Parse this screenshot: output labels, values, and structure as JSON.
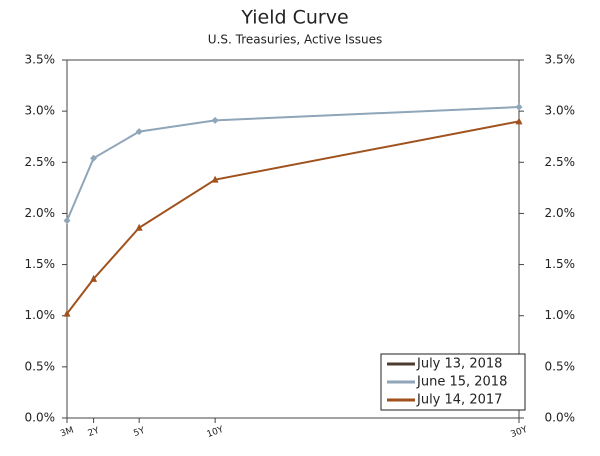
{
  "chart_data": {
    "type": "line",
    "title": "Yield Curve",
    "subtitle": "U.S. Treasuries, Active Issues",
    "x": [
      0.25,
      2,
      5,
      10,
      30
    ],
    "xlim": [
      0.25,
      30
    ],
    "xticks": [
      {
        "value": 0.25,
        "label": "3M"
      },
      {
        "value": 2,
        "label": "2Y"
      },
      {
        "value": 5,
        "label": "5Y"
      },
      {
        "value": 10,
        "label": "10Y"
      },
      {
        "value": 30,
        "label": "30Y"
      }
    ],
    "ylim": [
      0,
      3.5
    ],
    "yticks": [
      {
        "value": 0,
        "label": "0.0%"
      },
      {
        "value": 0.5,
        "label": "0.5%"
      },
      {
        "value": 1,
        "label": "1.0%"
      },
      {
        "value": 1.5,
        "label": "1.5%"
      },
      {
        "value": 2,
        "label": "2.0%"
      },
      {
        "value": 2.5,
        "label": "2.5%"
      },
      {
        "value": 3,
        "label": "3.0%"
      },
      {
        "value": 3.5,
        "label": "3.5%"
      }
    ],
    "y2lim": [
      0,
      3.5
    ],
    "y2ticks": [
      {
        "value": 0,
        "label": "0.0%"
      },
      {
        "value": 0.5,
        "label": "0.5%"
      },
      {
        "value": 1,
        "label": "1.0%"
      },
      {
        "value": 1.5,
        "label": "1.5%"
      },
      {
        "value": 2,
        "label": "2.0%"
      },
      {
        "value": 2.5,
        "label": "2.5%"
      },
      {
        "value": 3,
        "label": "3.0%"
      },
      {
        "value": 3.5,
        "label": "3.5%"
      }
    ],
    "legend": "lower right",
    "series": [
      {
        "name": "July 13, 2018",
        "color": "#4d3b32",
        "marker": "none",
        "values": [
          null,
          null,
          null,
          null,
          null
        ]
      },
      {
        "name": "June 15, 2018",
        "color": "#8fa5b8",
        "marker": "diamond",
        "values": [
          1.93,
          2.54,
          2.8,
          2.91,
          3.04
        ]
      },
      {
        "name": "July 14, 2017",
        "color": "#a0521e",
        "marker": "triangle",
        "values": [
          1.02,
          1.36,
          1.86,
          2.33,
          2.9
        ]
      }
    ]
  }
}
